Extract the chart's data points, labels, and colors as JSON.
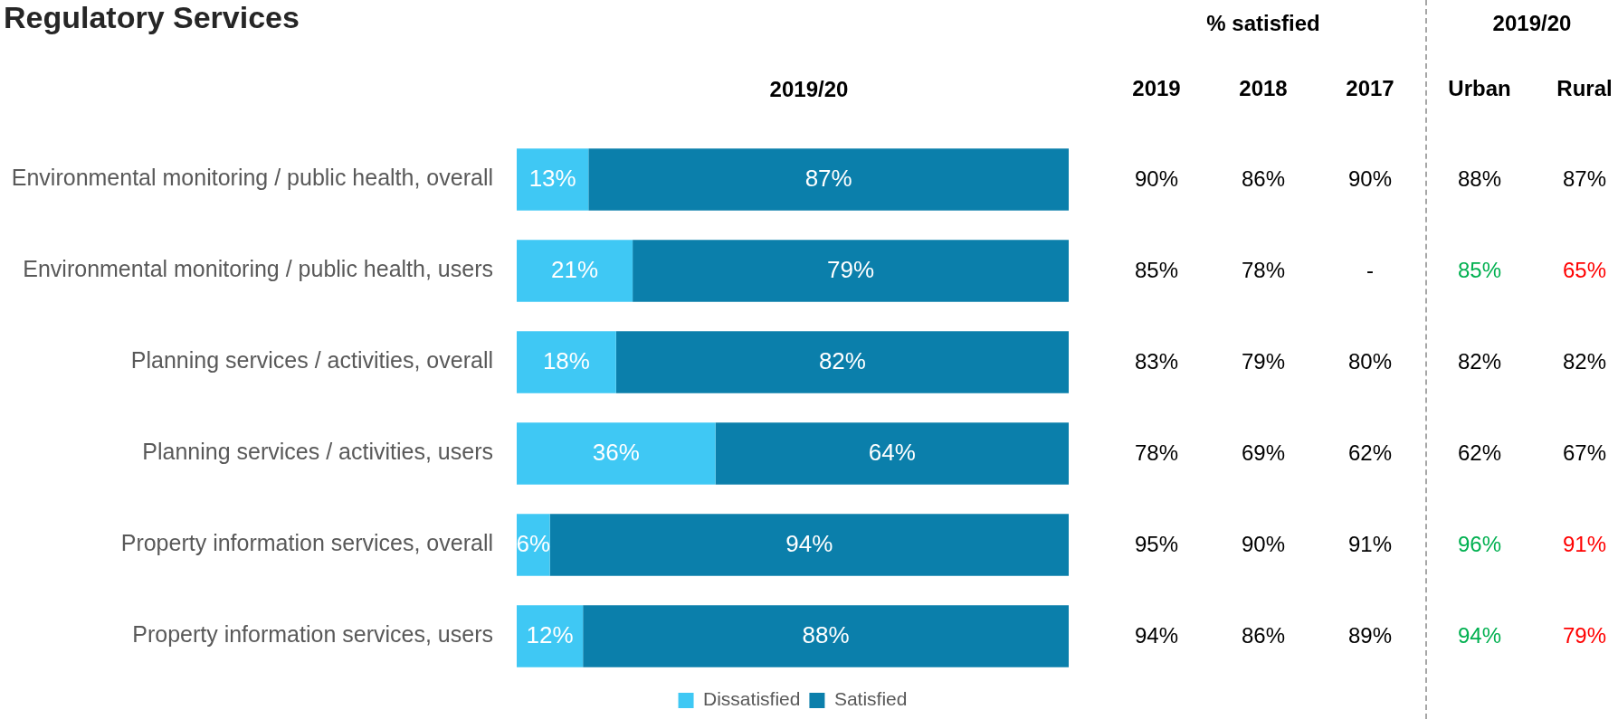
{
  "chart_data": [
    {
      "type": "bar",
      "title": "Regulatory Services",
      "subtitle": "2019/20",
      "orientation": "horizontal",
      "stacked": true,
      "categories": [
        "Environmental monitoring / public health, overall",
        "Environmental monitoring / public health, users",
        "Planning services / activities, overall",
        "Planning services / activities, users",
        "Property information services, overall",
        "Property information services, users"
      ],
      "series": [
        {
          "name": "Dissatisfied",
          "color": "#3fc8f4",
          "values": [
            13,
            21,
            18,
            36,
            6,
            12
          ],
          "value_labels": [
            "13%",
            "21%",
            "18%",
            "36%",
            "6%",
            "12%"
          ]
        },
        {
          "name": "Satisfied",
          "color": "#0b7fab",
          "values": [
            87,
            79,
            82,
            64,
            94,
            88
          ],
          "value_labels": [
            "87%",
            "79%",
            "82%",
            "64%",
            "94%",
            "88%"
          ]
        }
      ],
      "xlim": [
        0,
        100
      ],
      "tick_labels": "y",
      "legend": "bottom"
    },
    {
      "type": "heatmap",
      "title": "% satisfied",
      "categories": [
        "2019",
        "2018",
        "2017"
      ],
      "y_categories": [
        null,
        null,
        null,
        null,
        null,
        null
      ],
      "cells": [
        [
          90,
          86,
          90
        ],
        [
          85,
          78,
          null
        ],
        [
          83,
          79,
          80
        ],
        [
          78,
          69,
          62
        ],
        [
          95,
          90,
          91
        ],
        [
          94,
          86,
          89
        ]
      ],
      "cell_labels": [
        [
          "90%",
          "86%",
          "90%"
        ],
        [
          "85%",
          "78%",
          "-"
        ],
        [
          "83%",
          "79%",
          "80%"
        ],
        [
          "78%",
          "69%",
          "62%"
        ],
        [
          "95%",
          "90%",
          "91%"
        ],
        [
          "94%",
          "86%",
          "89%"
        ]
      ]
    },
    {
      "type": "heatmap",
      "title": "2019/20",
      "categories": [
        "Urban",
        "Rural"
      ],
      "y_categories": [
        null,
        null,
        null,
        null,
        null,
        null
      ],
      "cells": [
        [
          88,
          87
        ],
        [
          85,
          65
        ],
        [
          82,
          82
        ],
        [
          62,
          67
        ],
        [
          96,
          91
        ],
        [
          94,
          79
        ]
      ],
      "cell_labels": [
        [
          "88%",
          "87%"
        ],
        [
          "85%",
          "65%"
        ],
        [
          "82%",
          "82%"
        ],
        [
          "62%",
          "67%"
        ],
        [
          "96%",
          "91%"
        ],
        [
          "94%",
          "79%"
        ]
      ],
      "colors": [
        [
          "#000000",
          "#000000"
        ],
        [
          "#00b050",
          "#ff0000"
        ],
        [
          "#000000",
          "#000000"
        ],
        [
          "#000000",
          "#000000"
        ],
        [
          "#00b050",
          "#ff0000"
        ],
        [
          "#00b050",
          "#ff0000"
        ]
      ]
    }
  ]
}
